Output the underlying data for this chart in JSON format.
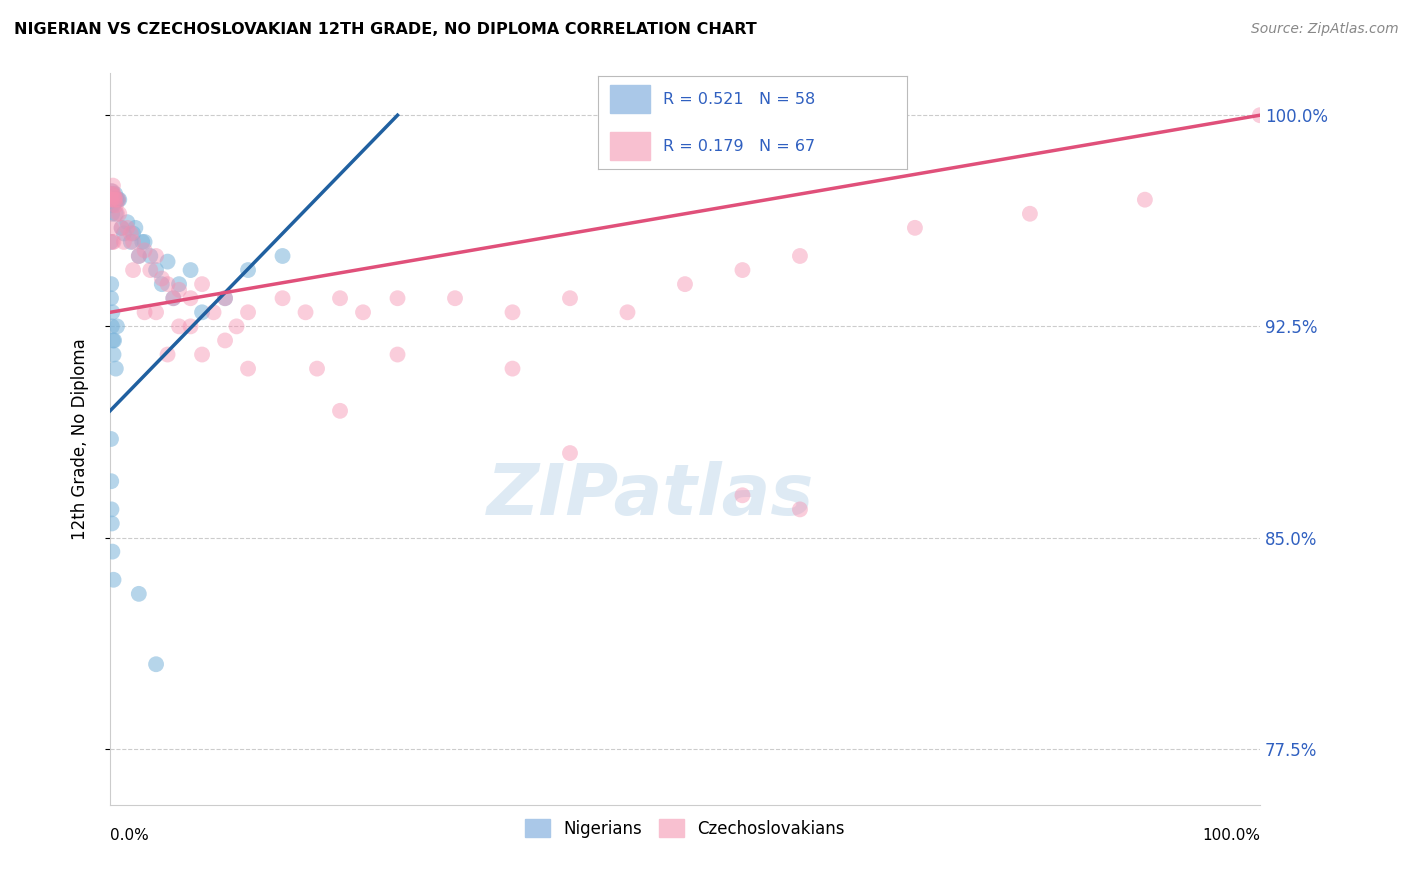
{
  "title": "NIGERIAN VS CZECHOSLOVAKIAN 12TH GRADE, NO DIPLOMA CORRELATION CHART",
  "source": "Source: ZipAtlas.com",
  "ylabel": "12th Grade, No Diploma",
  "yticks": [
    77.5,
    85.0,
    92.5,
    100.0
  ],
  "ytick_labels": [
    "77.5%",
    "85.0%",
    "92.5%",
    "100.0%"
  ],
  "xmin": 0.0,
  "xmax": 100.0,
  "ymin": 75.5,
  "ymax": 101.5,
  "watermark_text": "ZIPatlas",
  "watermark_color": "#cde0ef",
  "nigerian_color": "#7ab3d9",
  "czechoslovakian_color": "#f490b0",
  "nigerian_trend_color": "#2060a0",
  "czechoslovakian_trend_color": "#e0507a",
  "legend_box_nigerian_color": "#aac8e8",
  "legend_box_czech_color": "#f8c0d0",
  "legend_text_color": "#3060c0",
  "nigerian_R": 0.521,
  "nigerian_N": 58,
  "czechoslovakian_R": 0.179,
  "czechoslovakian_N": 67,
  "nigerian_trend_start_x": 0.0,
  "nigerian_trend_start_y": 89.5,
  "nigerian_trend_end_x": 25.0,
  "nigerian_trend_end_y": 100.0,
  "czechoslovakian_trend_start_x": 0.0,
  "czechoslovakian_trend_start_y": 93.0,
  "czechoslovakian_trend_end_x": 100.0,
  "czechoslovakian_trend_end_y": 100.0,
  "nigerian_points": [
    [
      0.05,
      97.0
    ],
    [
      0.07,
      97.2
    ],
    [
      0.08,
      97.0
    ],
    [
      0.1,
      96.8
    ],
    [
      0.12,
      97.3
    ],
    [
      0.15,
      97.0
    ],
    [
      0.18,
      96.5
    ],
    [
      0.2,
      97.1
    ],
    [
      0.22,
      97.2
    ],
    [
      0.25,
      97.0
    ],
    [
      0.28,
      96.8
    ],
    [
      0.3,
      97.0
    ],
    [
      0.35,
      97.0
    ],
    [
      0.4,
      96.9
    ],
    [
      0.45,
      97.2
    ],
    [
      0.5,
      96.5
    ],
    [
      0.55,
      97.0
    ],
    [
      0.6,
      97.0
    ],
    [
      0.7,
      97.0
    ],
    [
      0.8,
      97.0
    ],
    [
      1.0,
      96.0
    ],
    [
      1.2,
      95.8
    ],
    [
      1.5,
      96.2
    ],
    [
      1.8,
      95.5
    ],
    [
      2.0,
      95.8
    ],
    [
      2.2,
      96.0
    ],
    [
      2.5,
      95.0
    ],
    [
      2.8,
      95.5
    ],
    [
      3.0,
      95.5
    ],
    [
      3.5,
      95.0
    ],
    [
      4.0,
      94.5
    ],
    [
      4.5,
      94.0
    ],
    [
      5.0,
      94.8
    ],
    [
      5.5,
      93.5
    ],
    [
      6.0,
      94.0
    ],
    [
      7.0,
      94.5
    ],
    [
      8.0,
      93.0
    ],
    [
      10.0,
      93.5
    ],
    [
      12.0,
      94.5
    ],
    [
      15.0,
      95.0
    ],
    [
      0.05,
      95.5
    ],
    [
      0.08,
      93.5
    ],
    [
      0.1,
      94.0
    ],
    [
      0.15,
      92.5
    ],
    [
      0.2,
      93.0
    ],
    [
      0.25,
      92.0
    ],
    [
      0.3,
      91.5
    ],
    [
      0.35,
      92.0
    ],
    [
      0.5,
      91.0
    ],
    [
      0.6,
      92.5
    ],
    [
      0.08,
      88.5
    ],
    [
      0.1,
      87.0
    ],
    [
      0.12,
      86.0
    ],
    [
      0.15,
      85.5
    ],
    [
      0.2,
      84.5
    ],
    [
      0.3,
      83.5
    ],
    [
      2.5,
      83.0
    ],
    [
      4.0,
      80.5
    ]
  ],
  "czechoslovakian_points": [
    [
      0.05,
      97.0
    ],
    [
      0.1,
      97.2
    ],
    [
      0.15,
      97.0
    ],
    [
      0.2,
      97.3
    ],
    [
      0.25,
      97.5
    ],
    [
      0.3,
      97.2
    ],
    [
      0.35,
      97.0
    ],
    [
      0.4,
      97.1
    ],
    [
      0.45,
      97.0
    ],
    [
      0.5,
      96.8
    ],
    [
      0.6,
      96.5
    ],
    [
      0.7,
      97.0
    ],
    [
      0.8,
      96.5
    ],
    [
      1.0,
      96.0
    ],
    [
      1.2,
      95.5
    ],
    [
      1.5,
      96.0
    ],
    [
      1.8,
      95.8
    ],
    [
      2.0,
      95.5
    ],
    [
      2.5,
      95.0
    ],
    [
      3.0,
      95.2
    ],
    [
      3.5,
      94.5
    ],
    [
      4.0,
      95.0
    ],
    [
      4.5,
      94.2
    ],
    [
      5.0,
      94.0
    ],
    [
      5.5,
      93.5
    ],
    [
      6.0,
      93.8
    ],
    [
      7.0,
      93.5
    ],
    [
      8.0,
      94.0
    ],
    [
      9.0,
      93.0
    ],
    [
      10.0,
      93.5
    ],
    [
      11.0,
      92.5
    ],
    [
      12.0,
      93.0
    ],
    [
      15.0,
      93.5
    ],
    [
      17.0,
      93.0
    ],
    [
      20.0,
      93.5
    ],
    [
      22.0,
      93.0
    ],
    [
      25.0,
      93.5
    ],
    [
      30.0,
      93.5
    ],
    [
      35.0,
      93.0
    ],
    [
      40.0,
      93.5
    ],
    [
      45.0,
      93.0
    ],
    [
      50.0,
      94.0
    ],
    [
      55.0,
      94.5
    ],
    [
      60.0,
      95.0
    ],
    [
      70.0,
      96.0
    ],
    [
      80.0,
      96.5
    ],
    [
      90.0,
      97.0
    ],
    [
      100.0,
      100.0
    ],
    [
      0.1,
      96.0
    ],
    [
      0.2,
      95.5
    ],
    [
      0.3,
      95.5
    ],
    [
      2.0,
      94.5
    ],
    [
      4.0,
      93.0
    ],
    [
      6.0,
      92.5
    ],
    [
      8.0,
      91.5
    ],
    [
      12.0,
      91.0
    ],
    [
      18.0,
      91.0
    ],
    [
      25.0,
      91.5
    ],
    [
      35.0,
      91.0
    ],
    [
      5.0,
      91.5
    ],
    [
      10.0,
      92.0
    ],
    [
      3.0,
      93.0
    ],
    [
      7.0,
      92.5
    ],
    [
      20.0,
      89.5
    ],
    [
      40.0,
      88.0
    ],
    [
      55.0,
      86.5
    ],
    [
      60.0,
      86.0
    ]
  ]
}
